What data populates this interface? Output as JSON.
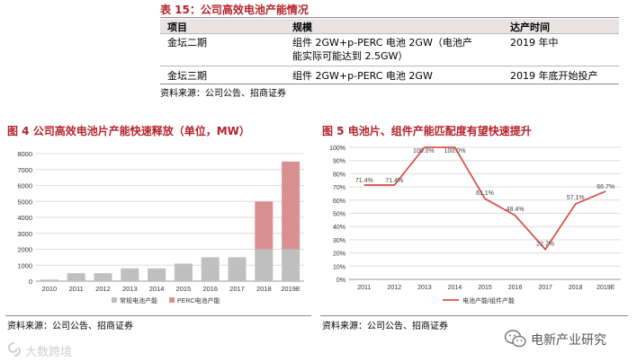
{
  "table": {
    "title": "表 15：公司高效电池产能情况",
    "headers": [
      "项目",
      "规模",
      "达产时间"
    ],
    "rows": [
      {
        "item": "金坛二期",
        "scale_line1": "组件 2GW+p-PERC 电池 2GW（电池产",
        "scale_line2": "能实际可能达到 2.5GW）",
        "time": "2019 年中"
      },
      {
        "item": "金坛三期",
        "scale_line1": "组件 2GW+p-PERC 电池 2GW",
        "scale_line2": "",
        "time": "2019 年底开始投产"
      }
    ],
    "source": "资料来源：公司公告、招商证券"
  },
  "figure4": {
    "title": "图 4 公司高效电池片产能快速释放（单位，MW）",
    "source": "资料来源：公司公告、招商证券"
  },
  "figure5": {
    "title": "图 5 电池片、组件产能匹配度有望快速提升",
    "source": "资料来源：公司公告、招商证券"
  },
  "chart_data": [
    {
      "type": "bar",
      "stacked": true,
      "title": "",
      "categories": [
        "2010",
        "2011",
        "2012",
        "2013",
        "2014",
        "2015",
        "2016",
        "2017",
        "2018",
        "2019E"
      ],
      "series": [
        {
          "name": "常规电池产能",
          "color": "#bfbfbf",
          "values": [
            100,
            500,
            500,
            800,
            800,
            1100,
            1500,
            1500,
            2000,
            2000
          ]
        },
        {
          "name": "PERC电池产能",
          "color": "#d9908f",
          "values": [
            0,
            0,
            0,
            0,
            0,
            0,
            0,
            0,
            3000,
            5500
          ]
        }
      ],
      "ylim": [
        0,
        8000
      ],
      "yticks": [
        0,
        1000,
        2000,
        3000,
        4000,
        5000,
        6000,
        7000,
        8000
      ],
      "grid": true,
      "legend": "bottom"
    },
    {
      "type": "line",
      "title": "",
      "categories": [
        "2011",
        "2012",
        "2013",
        "2014",
        "2015",
        "2016",
        "2017",
        "2018",
        "2019E"
      ],
      "series": [
        {
          "name": "电池产能/组件产能",
          "color": "#d9534f",
          "values": [
            71.4,
            71.4,
            100.0,
            100.0,
            61.1,
            48.4,
            22.7,
            57.1,
            66.7
          ],
          "labels": [
            "71.4%",
            "71.4%",
            "100.0%",
            "100.0%",
            "61.1%",
            "48.4%",
            "22.7%",
            "57.1%",
            "66.7%"
          ]
        }
      ],
      "ylim": [
        0,
        100
      ],
      "yticks": [
        "0%",
        "10%",
        "20%",
        "30%",
        "40%",
        "50%",
        "60%",
        "70%",
        "80%",
        "90%",
        "100%"
      ],
      "grid": true,
      "legend": "bottom"
    }
  ],
  "watermark": "大数跨境",
  "brand": "电新产业研究",
  "icons": {
    "watermark_logo": "swirl-logo-icon",
    "brand_logo": "wechat-icon"
  }
}
